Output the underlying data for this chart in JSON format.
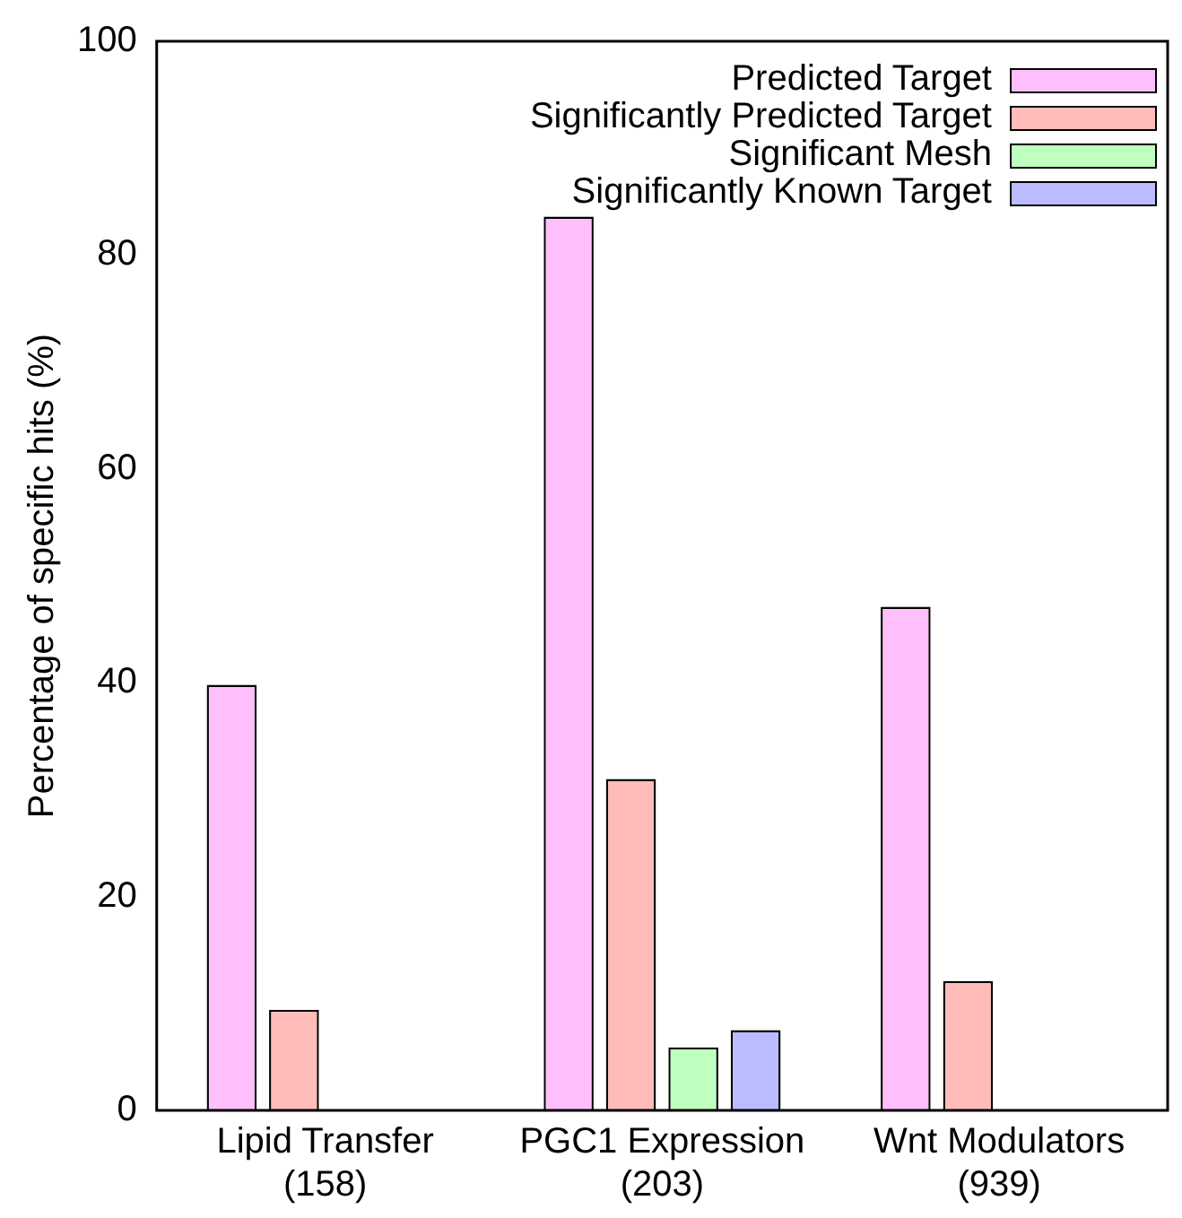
{
  "chart_data": {
    "type": "bar",
    "ylabel": "Percentage of specific hits (%)",
    "categories": [
      "Lipid Transfer\n(158)",
      "PGC1 Expression\n(203)",
      "Wnt Modulators\n(939)"
    ],
    "series": [
      {
        "name": "Predicted Target",
        "color": "#ffbffc",
        "values": [
          39.8,
          83.6,
          47.1
        ]
      },
      {
        "name": "Significantly Predicted Target",
        "color": "#ffbcb8",
        "values": [
          9.4,
          31.0,
          12.1
        ]
      },
      {
        "name": "Significant Mesh",
        "color": "#bfffbf",
        "values": [
          0,
          5.9,
          0
        ]
      },
      {
        "name": "Significantly Known Target",
        "color": "#bbbcff",
        "values": [
          0,
          7.5,
          0
        ]
      }
    ],
    "ylim": [
      0,
      100
    ],
    "yticks": [
      0,
      20,
      40,
      60,
      80,
      100
    ],
    "grid": false,
    "legend": "top right"
  }
}
